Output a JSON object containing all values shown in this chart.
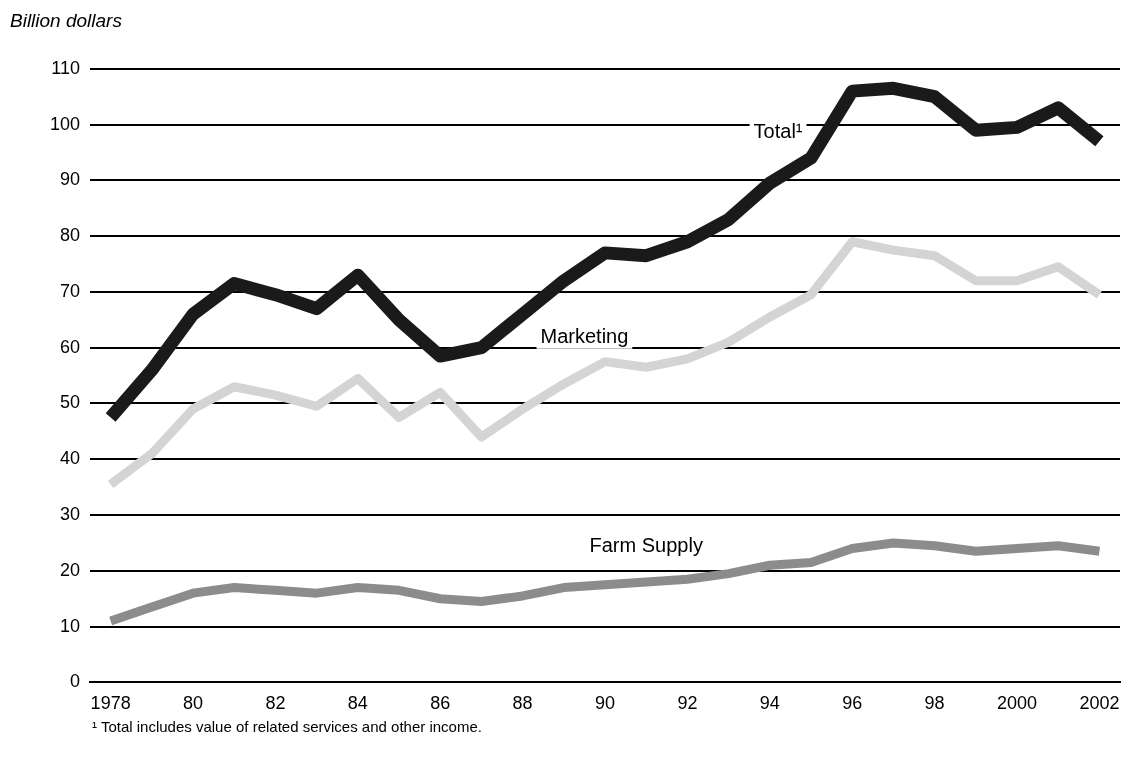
{
  "chart_data": {
    "type": "line",
    "ylabel": "Billion dollars",
    "x": [
      1978,
      1979,
      1980,
      1981,
      1982,
      1983,
      1984,
      1985,
      1986,
      1987,
      1988,
      1989,
      1990,
      1991,
      1992,
      1993,
      1994,
      1995,
      1996,
      1997,
      1998,
      1999,
      2000,
      2001,
      2002
    ],
    "series": [
      {
        "name": "Total¹",
        "color": "#1a1a1a",
        "values": [
          47.5,
          56,
          66,
          71.5,
          69.5,
          67,
          73,
          65,
          58.5,
          60,
          66,
          72,
          77,
          76.5,
          79,
          83,
          89.5,
          94,
          106,
          106.5,
          105,
          99,
          99.5,
          103,
          97
        ]
      },
      {
        "name": "Marketing",
        "color": "#d4d4d4",
        "values": [
          35.5,
          41,
          49,
          53,
          51.5,
          49.5,
          54.5,
          47.5,
          52,
          44,
          49,
          53.5,
          57.5,
          56.5,
          58,
          61,
          65.5,
          69.5,
          79,
          77.5,
          76.5,
          72,
          72,
          74.5,
          69.5
        ]
      },
      {
        "name": "Farm Supply",
        "color": "#8c8c8c",
        "values": [
          11,
          13.5,
          16,
          17,
          16.5,
          16,
          17,
          16.5,
          15,
          14.5,
          15.5,
          17,
          17.5,
          18,
          18.5,
          19.5,
          21,
          21.5,
          24,
          25,
          24.5,
          23.5,
          24,
          24.5,
          23.5
        ]
      }
    ],
    "xlim": [
      1977.5,
      2002.5
    ],
    "xticks": [
      {
        "value": 1978,
        "label": "1978"
      },
      {
        "value": 1980,
        "label": "80"
      },
      {
        "value": 1982,
        "label": "82"
      },
      {
        "value": 1984,
        "label": "84"
      },
      {
        "value": 1986,
        "label": "86"
      },
      {
        "value": 1988,
        "label": "88"
      },
      {
        "value": 1990,
        "label": "90"
      },
      {
        "value": 1992,
        "label": "92"
      },
      {
        "value": 1994,
        "label": "94"
      },
      {
        "value": 1996,
        "label": "96"
      },
      {
        "value": 1998,
        "label": "98"
      },
      {
        "value": 2000,
        "label": "2000"
      },
      {
        "value": 2002,
        "label": "2002"
      }
    ],
    "ylim": [
      0,
      110
    ],
    "yticks": [
      0,
      10,
      20,
      30,
      40,
      50,
      60,
      70,
      80,
      90,
      100,
      110
    ],
    "grid": "y",
    "legend": false,
    "marker": "none",
    "line_style": "solid",
    "annotations": [
      "¹ Total includes value of related services and other income."
    ]
  }
}
